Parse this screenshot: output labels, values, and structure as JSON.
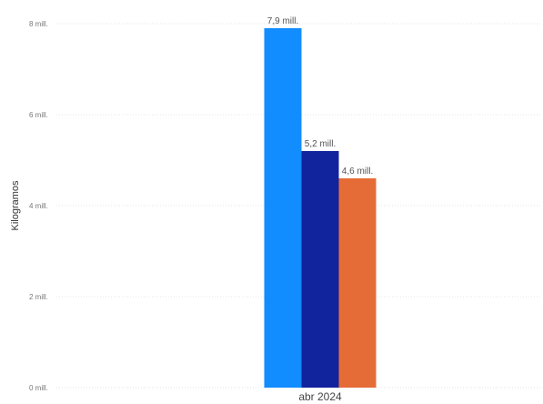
{
  "chart_data": {
    "type": "bar",
    "categories": [
      "abr 2024"
    ],
    "series": [
      {
        "values": [
          7.9
        ],
        "color": "#118DFF",
        "label": "7,9 mill."
      },
      {
        "values": [
          5.2
        ],
        "color": "#12239E",
        "label": "5,2 mill."
      },
      {
        "values": [
          4.6
        ],
        "color": "#E66C37",
        "label": "4,6 mill."
      }
    ],
    "ylabel": "Kilogramos",
    "xlabel": "",
    "ylim": [
      0,
      8
    ],
    "yticks": [
      {
        "value": 0,
        "label": "0 mill."
      },
      {
        "value": 2,
        "label": "2 mill."
      },
      {
        "value": 4,
        "label": "4 mill."
      },
      {
        "value": 6,
        "label": "6 mill."
      },
      {
        "value": 8,
        "label": "8 mill."
      }
    ],
    "grid": true,
    "legend": "none"
  }
}
